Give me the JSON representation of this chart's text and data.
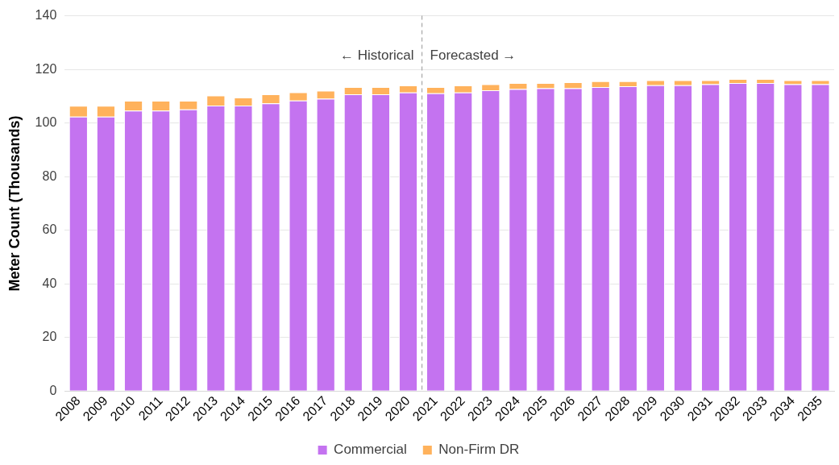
{
  "chart_data": {
    "type": "bar",
    "stacked": true,
    "ylabel": "Meter Count (Thousands)",
    "x": [
      2008,
      2009,
      2010,
      2011,
      2012,
      2013,
      2014,
      2015,
      2016,
      2017,
      2018,
      2019,
      2020,
      2021,
      2022,
      2023,
      2024,
      2025,
      2026,
      2027,
      2028,
      2029,
      2030,
      2031,
      2032,
      2033,
      2034,
      2035
    ],
    "xlim": [
      2007.5,
      2035.5
    ],
    "xticks": [
      2008,
      2009,
      2010,
      2011,
      2012,
      2013,
      2014,
      2015,
      2016,
      2017,
      2018,
      2019,
      2020,
      2021,
      2022,
      2023,
      2024,
      2025,
      2026,
      2027,
      2028,
      2029,
      2030,
      2031,
      2032,
      2033,
      2034,
      2035
    ],
    "ylim": [
      0,
      140
    ],
    "yticks": [
      0,
      20,
      40,
      60,
      80,
      100,
      120,
      140
    ],
    "series": [
      {
        "name": "Commercial",
        "color": "#c473f0",
        "values": [
          102.4,
          102.4,
          104.6,
          104.6,
          105.1,
          106.5,
          106.5,
          107.3,
          108.4,
          109.1,
          110.7,
          110.7,
          111.4,
          111.1,
          111.4,
          112.2,
          112.7,
          113.0,
          113.0,
          113.4,
          113.7,
          114.1,
          114.1,
          114.5,
          114.9,
          114.9,
          114.5,
          114.5
        ]
      },
      {
        "name": "Non-Firm DR",
        "color": "#ffb25c",
        "values": [
          4.0,
          4.0,
          3.7,
          3.7,
          3.2,
          3.8,
          3.0,
          3.4,
          3.1,
          3.0,
          2.7,
          2.7,
          2.6,
          2.3,
          2.6,
          2.3,
          2.2,
          1.9,
          2.2,
          2.2,
          1.9,
          1.9,
          1.9,
          1.5,
          1.5,
          1.5,
          1.5,
          1.5
        ]
      }
    ],
    "ref_lines": [
      {
        "axis": "x",
        "value": 2020.5,
        "color": "#a6a6a6",
        "line_style": "dashed"
      }
    ],
    "annotations": [
      {
        "text": "← Historical",
        "x": 2020.5,
        "y": 125
      },
      {
        "text": "Forecasted →",
        "x": 2020.5,
        "y": 125
      }
    ],
    "grid": "y",
    "legend": "bottom"
  }
}
